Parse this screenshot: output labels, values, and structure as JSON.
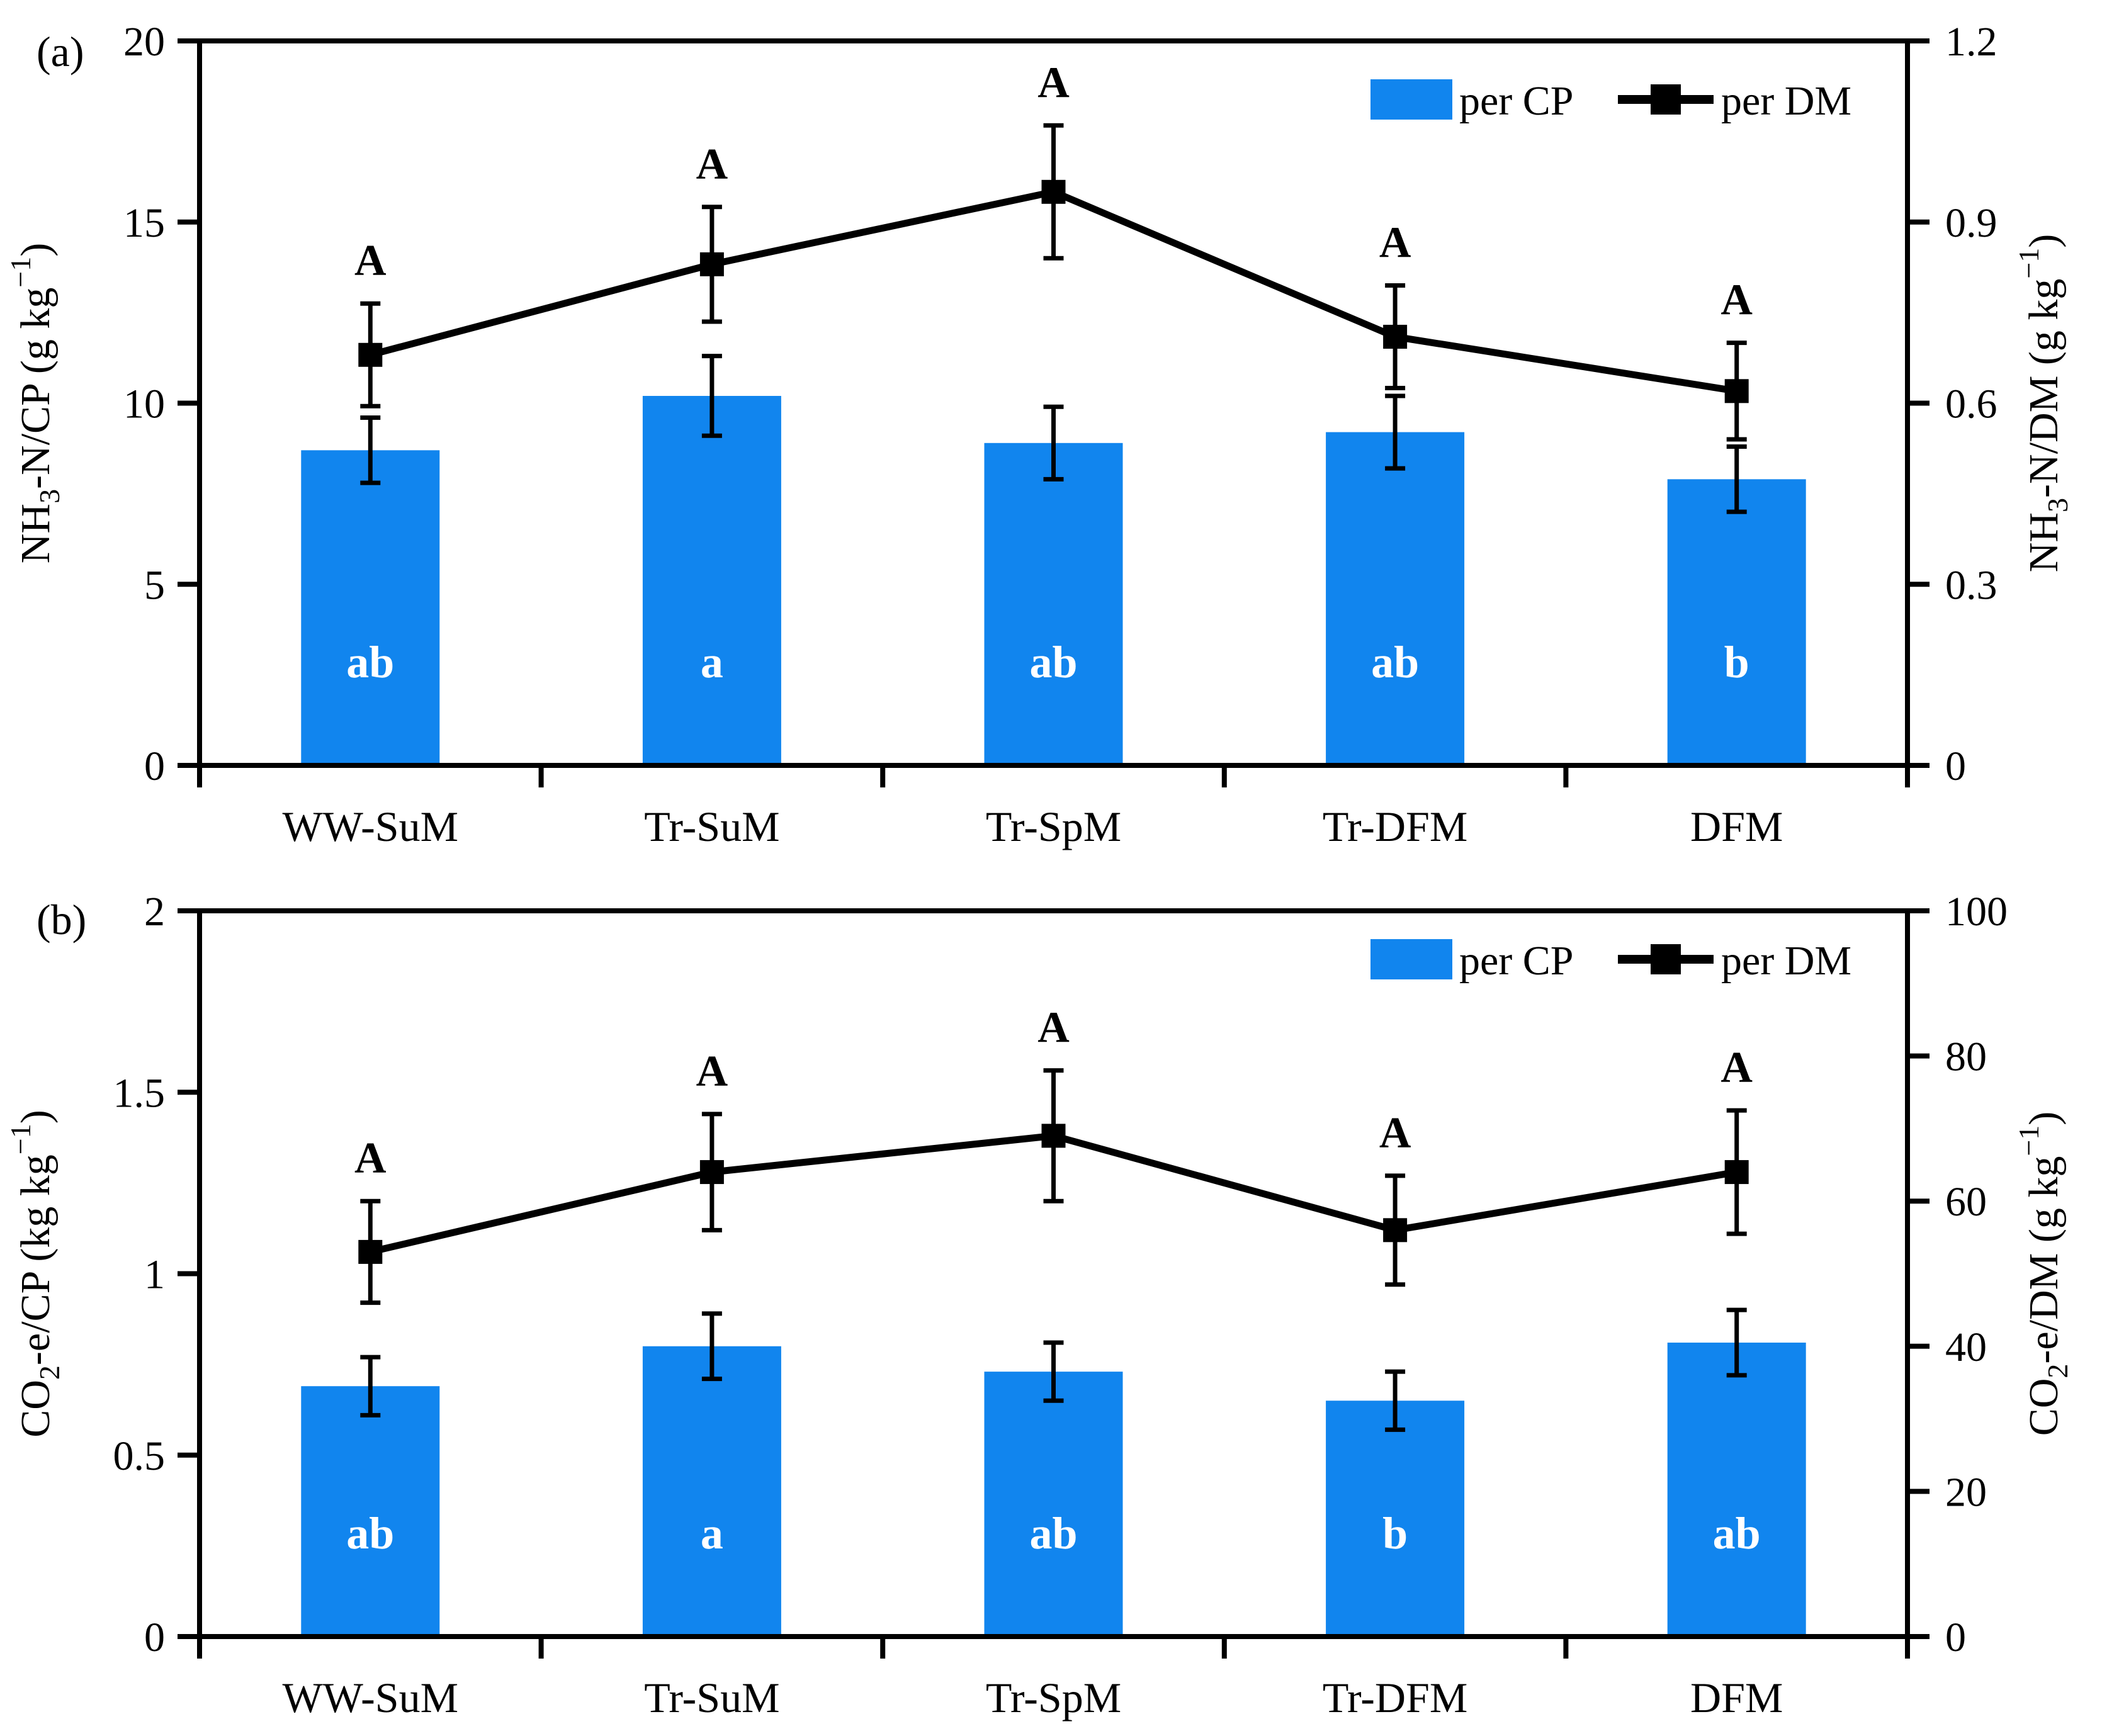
{
  "colors": {
    "bar_fill": "#1185EE",
    "line_stroke": "#000000",
    "bar_letter_color": "#FFFFFF",
    "axis_color": "#000000"
  },
  "chart_data": [
    {
      "type": "bar",
      "subtype": "bar+line-dual-axis",
      "panel_label": "(a)",
      "categories": [
        "WW-SuM",
        "Tr-SuM",
        "Tr-SpM",
        "Tr-DFM",
        "DFM"
      ],
      "left_axis": {
        "label": "NH3-N/CP (g kg-1)",
        "label_segments": [
          {
            "t": "NH"
          },
          {
            "t": "3",
            "type": "sub"
          },
          {
            "t": "-N/CP (g kg"
          },
          {
            "t": "−1",
            "type": "sup"
          },
          {
            "t": ")"
          }
        ],
        "range": [
          0,
          20
        ],
        "tick_values": [
          20,
          15,
          10,
          5,
          0
        ],
        "tick_labels": [
          "20",
          "15",
          "10",
          "5",
          "0"
        ]
      },
      "right_axis": {
        "label": "NH3-N/DM (g kg-1)",
        "label_segments": [
          {
            "t": "NH"
          },
          {
            "t": "3",
            "type": "sub"
          },
          {
            "t": "-N/DM (g kg"
          },
          {
            "t": "−1",
            "type": "sup"
          },
          {
            "t": ")"
          }
        ],
        "range": [
          0,
          1.2
        ],
        "tick_values": [
          1.2,
          0.9,
          0.6,
          0.3,
          0
        ],
        "tick_labels": [
          "1.2",
          "0.9",
          "0.6",
          "0.3",
          "0"
        ]
      },
      "series": [
        {
          "name": "per CP",
          "type": "bar",
          "axis": "left",
          "values": [
            8.7,
            10.2,
            8.9,
            9.2,
            7.9
          ],
          "errors": [
            0.9,
            1.1,
            1.0,
            1.0,
            0.9
          ],
          "sig_letters": [
            "ab",
            "a",
            "ab",
            "ab",
            "b"
          ]
        },
        {
          "name": "per DM",
          "type": "line",
          "axis": "right",
          "values": [
            0.68,
            0.83,
            0.95,
            0.71,
            0.62
          ],
          "errors": [
            0.085,
            0.095,
            0.11,
            0.085,
            0.08
          ],
          "sig_letters": [
            "A",
            "A",
            "A",
            "A",
            "A"
          ]
        }
      ],
      "legend_position": "top-right",
      "grid": false
    },
    {
      "type": "bar",
      "subtype": "bar+line-dual-axis",
      "panel_label": "(b)",
      "categories": [
        "WW-SuM",
        "Tr-SuM",
        "Tr-SpM",
        "Tr-DFM",
        "DFM"
      ],
      "left_axis": {
        "label": "CO2-e/CP (kg kg-1)",
        "label_segments": [
          {
            "t": "CO"
          },
          {
            "t": "2",
            "type": "sub"
          },
          {
            "t": "-e/CP (kg kg"
          },
          {
            "t": "−1",
            "type": "sup"
          },
          {
            "t": ")"
          }
        ],
        "range": [
          0,
          2
        ],
        "tick_values": [
          2,
          1.5,
          1,
          0.5,
          0
        ],
        "tick_labels": [
          "2",
          "1.5",
          "1",
          "0.5",
          "0"
        ]
      },
      "right_axis": {
        "label": "CO2-e/DM (g kg-1)",
        "label_segments": [
          {
            "t": "CO"
          },
          {
            "t": "2",
            "type": "sub"
          },
          {
            "t": "-e/DM (g kg"
          },
          {
            "t": "−1",
            "type": "sup"
          },
          {
            "t": ")"
          }
        ],
        "range": [
          0,
          100
        ],
        "tick_values": [
          100,
          80,
          60,
          40,
          20,
          0
        ],
        "tick_labels": [
          "100",
          "80",
          "60",
          "40",
          "20",
          "0"
        ]
      },
      "series": [
        {
          "name": "per CP",
          "type": "bar",
          "axis": "left",
          "values": [
            0.69,
            0.8,
            0.73,
            0.65,
            0.81
          ],
          "errors": [
            0.08,
            0.09,
            0.08,
            0.08,
            0.09
          ],
          "sig_letters": [
            "ab",
            "a",
            "ab",
            "b",
            "ab"
          ]
        },
        {
          "name": "per DM",
          "type": "line",
          "axis": "right",
          "values": [
            53,
            64,
            69,
            56,
            64
          ],
          "errors": [
            7,
            8,
            9,
            7.5,
            8.5
          ],
          "sig_letters": [
            "A",
            "A",
            "A",
            "A",
            "A"
          ]
        }
      ],
      "legend_position": "top-right",
      "grid": false
    }
  ]
}
